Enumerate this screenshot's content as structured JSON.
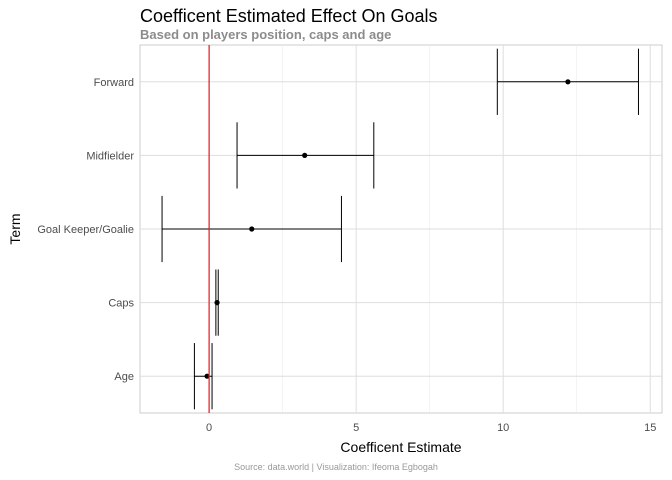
{
  "chart_data": {
    "type": "errorbar",
    "title": "Coefficent Estimated Effect On Goals",
    "subtitle": "Based on players position, caps and age",
    "xlabel": "Coefficent Estimate",
    "ylabel": "Term",
    "caption": "Source: data.world | Visualization: Ifeoma Egbogah",
    "xlim": [
      -2.35,
      15.4
    ],
    "xticks": [
      0,
      5,
      10,
      15
    ],
    "grid": true,
    "reference_line": {
      "x": 0,
      "color": "#e41a1c"
    },
    "categories": [
      "Forward",
      "Midfielder",
      "Goal Keeper/Goalie",
      "Caps",
      "Age"
    ],
    "estimates": [
      12.2,
      3.25,
      1.45,
      0.27,
      -0.07
    ],
    "conf_low": [
      9.8,
      0.95,
      -1.6,
      0.23,
      -0.5
    ],
    "conf_high": [
      14.6,
      5.6,
      4.5,
      0.31,
      0.1
    ]
  }
}
